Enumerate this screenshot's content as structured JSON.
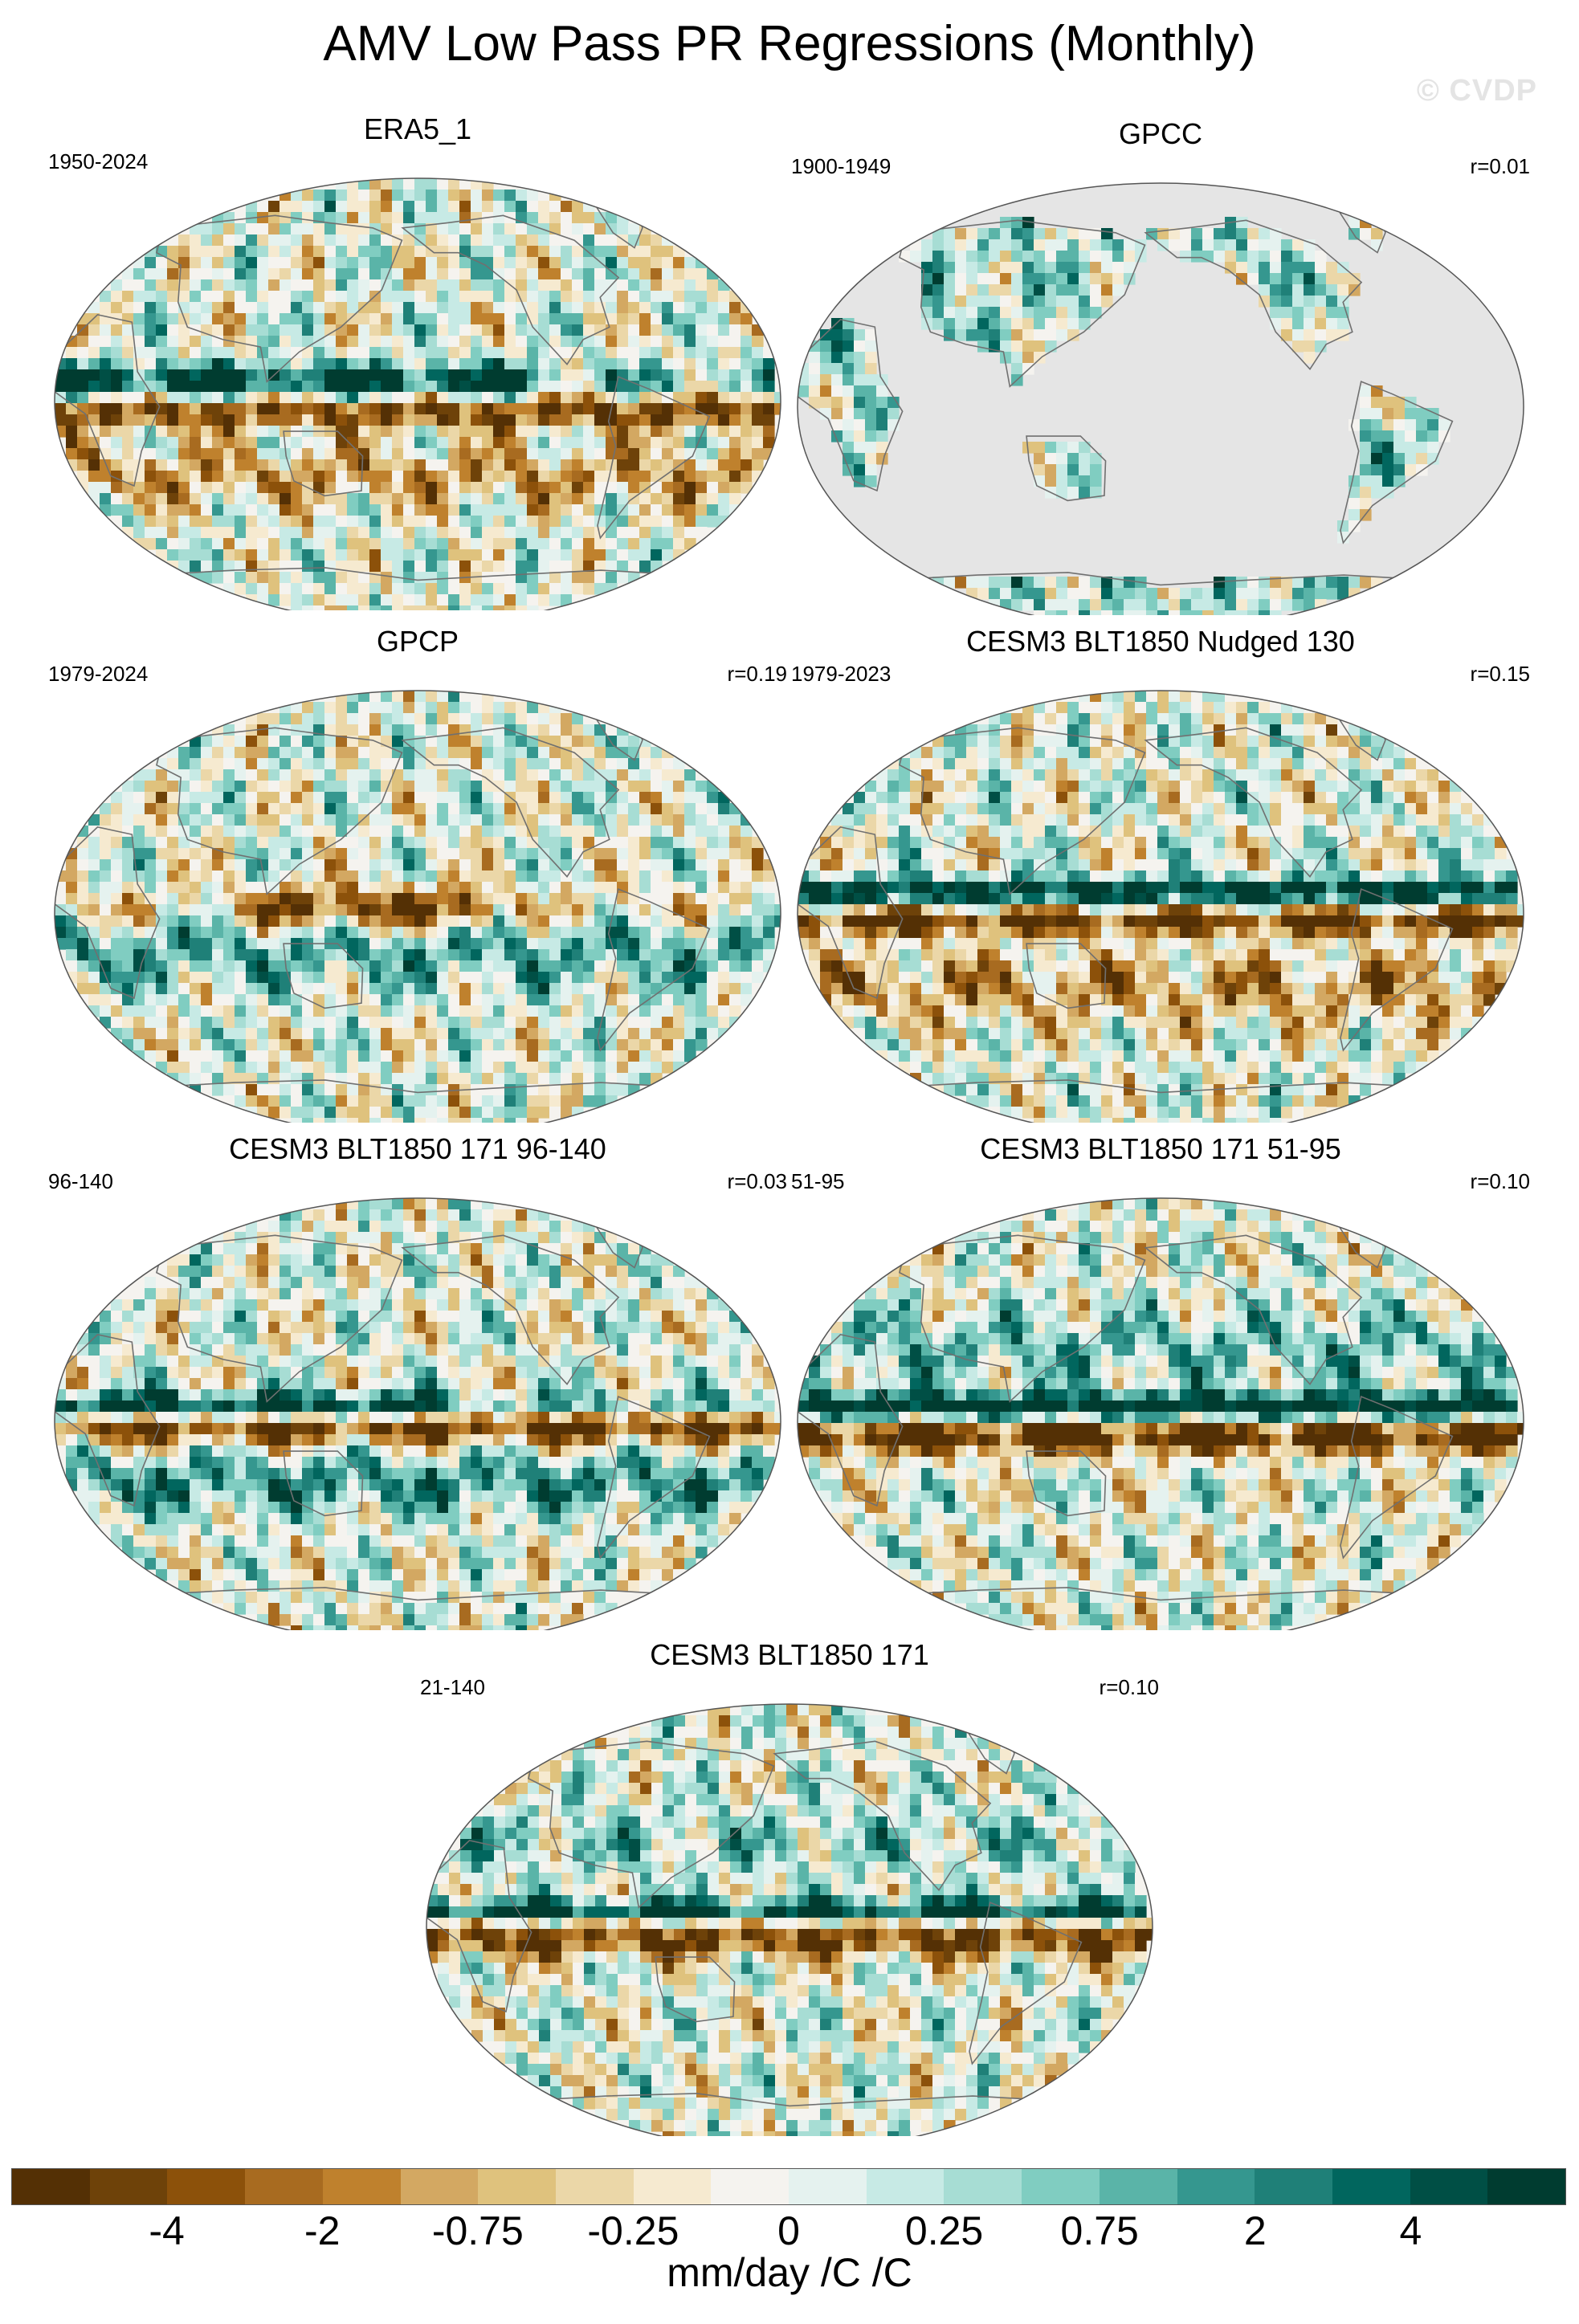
{
  "figure": {
    "title": "AMV Low Pass PR Regressions (Monthly)",
    "watermark": "© CVDP"
  },
  "panels": [
    {
      "title": "ERA5_1",
      "period": "1950-2024",
      "corr": "",
      "pattern": "era5",
      "land_only": false
    },
    {
      "title": "GPCC",
      "period": "1900-1949",
      "corr": "r=0.01",
      "pattern": "gpcc",
      "land_only": true
    },
    {
      "title": "GPCP",
      "period": "1979-2024",
      "corr": "r=0.19",
      "pattern": "gpcp",
      "land_only": false
    },
    {
      "title": "CESM3 BLT1850 Nudged 130",
      "period": "1979-2023",
      "corr": "r=0.15",
      "pattern": "nudged",
      "land_only": false
    },
    {
      "title": "CESM3 BLT1850 171 96-140",
      "period": "96-140",
      "corr": "r=0.03",
      "pattern": "m96",
      "land_only": false
    },
    {
      "title": "CESM3 BLT1850 171 51-95",
      "period": "51-95",
      "corr": "r=0.10",
      "pattern": "m51",
      "land_only": false
    },
    {
      "title": "CESM3 BLT1850 171",
      "period": "21-140",
      "corr": "r=0.10",
      "pattern": "m21",
      "land_only": false
    }
  ],
  "colorbar": {
    "colors": [
      "#543005",
      "#6e4209",
      "#8c510a",
      "#a86b20",
      "#bf812d",
      "#d3a862",
      "#dfc27d",
      "#ebd7a8",
      "#f6ead0",
      "#f5f3ef",
      "#e5f2ef",
      "#c7eae5",
      "#a7ddd4",
      "#80cdc1",
      "#5ab4a8",
      "#35978f",
      "#1f8078",
      "#01665e",
      "#004f45",
      "#003c30"
    ],
    "tick_labels": [
      "-4",
      "-2",
      "-0.75",
      "-0.25",
      "0",
      "0.25",
      "0.75",
      "2",
      "4"
    ],
    "units": "mm/day /C /C"
  }
}
